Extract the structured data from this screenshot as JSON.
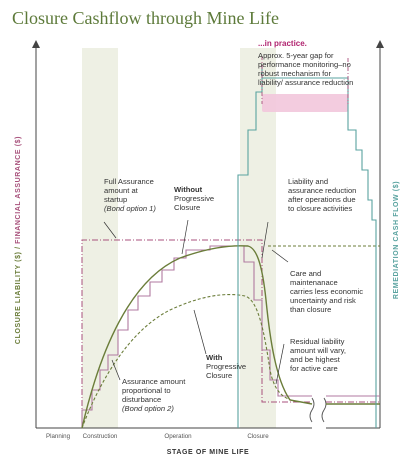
{
  "title": "Closure Cashflow through Mine Life",
  "axes": {
    "x_label": "STAGE OF MINE LIFE",
    "y_left_part1": "CLOSURE LIABILITY ($) / ",
    "y_left_part2": "FINANCIAL ASSURANCE ($)",
    "y_right": "REMEDIATION CASH FLOW ($)"
  },
  "phases": [
    "Planning",
    "Construction",
    "Operation",
    "Closure"
  ],
  "annotations": {
    "in_practice_title": "...in practice.",
    "in_practice_lines": [
      "Approx. 5-year gap for",
      "performance monitoring–no",
      "robust mechanism for",
      "liability/ assurance reduction"
    ],
    "full_assurance_lines": [
      "Full Assurance",
      "amount at",
      "startup"
    ],
    "bond_option_1": "(Bond option 1)",
    "without_bold": "Without",
    "without_lines": [
      "Progressive",
      "Closure"
    ],
    "liability_reduction_lines": [
      "Liability and",
      "assurance reduction",
      "after operations due",
      "to closure activities"
    ],
    "care_lines": [
      "Care and",
      "maintenanace",
      "carries less economic",
      "uncertainty and risk",
      "than closure"
    ],
    "with_bold": "With",
    "with_lines": [
      "Progressive",
      "Closure"
    ],
    "residual_lines": [
      "Residual liability",
      "amount will vary,",
      "and be highest",
      "for active care"
    ],
    "assurance_lines": [
      "Assurance amount",
      "proportional to",
      "disturbance"
    ],
    "bond_option_2": "(Bond option 2)"
  },
  "colors": {
    "title": "#5d7a3a",
    "liability_olive": "#6b7d3a",
    "assurance_magenta": "#a8527c",
    "assurance_steps": "#b07aa0",
    "cashflow_teal": "#5aa3a0",
    "highlight_pink": "#f2c6dc",
    "phase_band": "#eef0e4"
  }
}
